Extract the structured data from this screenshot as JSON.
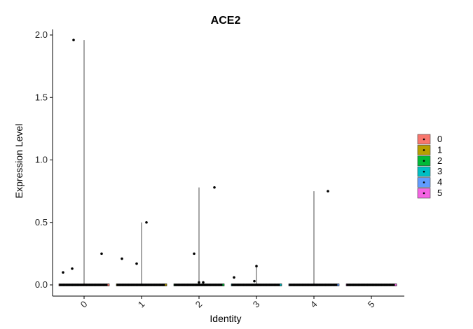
{
  "chart_data": {
    "type": "violin",
    "title": "ACE2",
    "xlabel": "Identity",
    "ylabel": "Expression Level",
    "ylim": [
      0,
      2.0
    ],
    "yticks": [
      0.0,
      0.5,
      1.0,
      1.5,
      2.0
    ],
    "ytick_labels": [
      "0.0",
      "0.5",
      "1.0",
      "1.5",
      "2.0"
    ],
    "categories": [
      "0",
      "1",
      "2",
      "3",
      "4",
      "5"
    ],
    "max_values": [
      1.96,
      0.5,
      0.78,
      0.15,
      0.75,
      0.0
    ],
    "points": [
      {
        "category": "0",
        "values": [
          0.1,
          0.13,
          1.96,
          0.25
        ]
      },
      {
        "category": "1",
        "values": [
          0.21,
          0.17,
          0.5
        ]
      },
      {
        "category": "2",
        "values": [
          0.25,
          0.02,
          0.02,
          0.78
        ]
      },
      {
        "category": "3",
        "values": [
          0.06,
          0.03,
          0.15
        ]
      },
      {
        "category": "4",
        "values": [
          0.75
        ]
      },
      {
        "category": "5",
        "values": []
      }
    ],
    "legend": {
      "placement": "right",
      "entries": [
        {
          "label": "0",
          "color": "#F8766D"
        },
        {
          "label": "1",
          "color": "#B79F00"
        },
        {
          "label": "2",
          "color": "#00BA38"
        },
        {
          "label": "3",
          "color": "#00BFC4"
        },
        {
          "label": "4",
          "color": "#619CFF"
        },
        {
          "label": "5",
          "color": "#F564E3"
        }
      ]
    },
    "grid": false
  }
}
